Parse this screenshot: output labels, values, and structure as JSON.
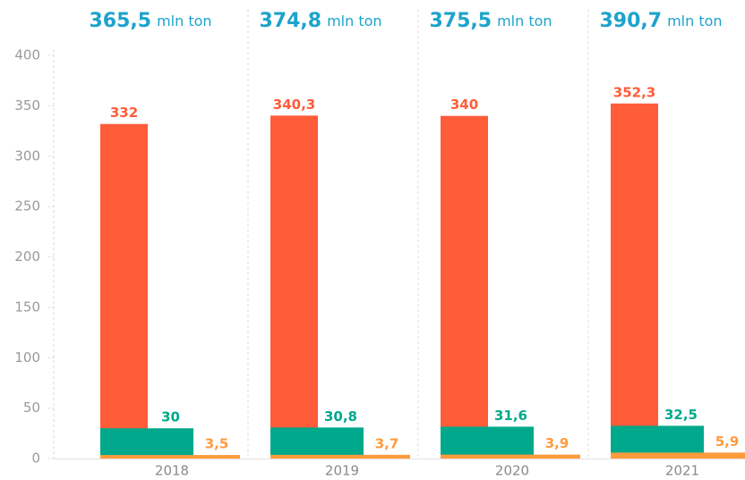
{
  "chart_data": {
    "type": "bar",
    "categories": [
      "2018",
      "2019",
      "2020",
      "2021"
    ],
    "totals": [
      {
        "value": 365.5,
        "label": "365,5"
      },
      {
        "value": 374.8,
        "label": "374,8"
      },
      {
        "value": 375.5,
        "label": "375,5"
      },
      {
        "value": 390.7,
        "label": "390,7"
      }
    ],
    "unit": "mln ton",
    "series": [
      {
        "color": "#ff5c39",
        "values": [
          332,
          340.3,
          340,
          352.3
        ],
        "value_labels": [
          "332",
          "340,3",
          "340",
          "352,3"
        ]
      },
      {
        "color": "#00a98b",
        "values": [
          30,
          30.8,
          31.6,
          32.5
        ],
        "value_labels": [
          "30",
          "30,8",
          "31,6",
          "32,5"
        ]
      },
      {
        "color": "#ff9b3d",
        "values": [
          3.5,
          3.7,
          3.9,
          5.9
        ],
        "value_labels": [
          "3,5",
          "3,7",
          "3,9",
          "5,9"
        ]
      }
    ],
    "ylim": [
      0,
      400
    ],
    "yticks": [
      0,
      50,
      100,
      150,
      200,
      250,
      300,
      350,
      400
    ]
  }
}
